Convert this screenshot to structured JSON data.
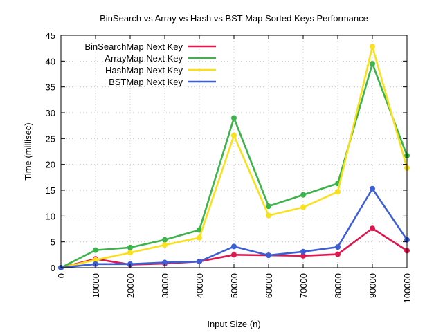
{
  "chart_data": {
    "type": "line",
    "title": "BinSearch vs Array vs Hash vs BST Map Sorted Keys Performance",
    "xlabel": "Input Size (n)",
    "ylabel": "Time (millisec)",
    "xlim": [
      0,
      100000
    ],
    "ylim": [
      0,
      45
    ],
    "x_ticks": [
      0,
      10000,
      20000,
      30000,
      40000,
      50000,
      60000,
      70000,
      80000,
      90000,
      100000
    ],
    "y_ticks": [
      0,
      5,
      10,
      15,
      20,
      25,
      30,
      35,
      40,
      45
    ],
    "grid": true,
    "legend_position": "top-left",
    "x": [
      0,
      10000,
      20000,
      30000,
      40000,
      50000,
      60000,
      70000,
      80000,
      90000,
      100000
    ],
    "series": [
      {
        "name": "BinSearchMap Next Key",
        "color": "#e0174e",
        "values": [
          0,
          1.7,
          0.6,
          0.8,
          1.2,
          2.5,
          2.4,
          2.3,
          2.6,
          7.6,
          3.3
        ]
      },
      {
        "name": "ArrayMap Next Key",
        "color": "#3cb44b",
        "values": [
          0,
          3.4,
          3.9,
          5.4,
          7.3,
          29.0,
          11.9,
          14.1,
          16.3,
          39.5,
          21.7
        ]
      },
      {
        "name": "HashMap Next Key",
        "color": "#f8e11c",
        "values": [
          0,
          1.5,
          2.9,
          4.4,
          5.8,
          25.6,
          10.1,
          11.7,
          14.7,
          42.8,
          19.3
        ]
      },
      {
        "name": "BSTMap Next Key",
        "color": "#3d5fd6",
        "values": [
          0,
          0.7,
          0.7,
          1.0,
          1.2,
          4.1,
          2.4,
          3.1,
          4.0,
          15.3,
          5.4
        ]
      }
    ]
  }
}
